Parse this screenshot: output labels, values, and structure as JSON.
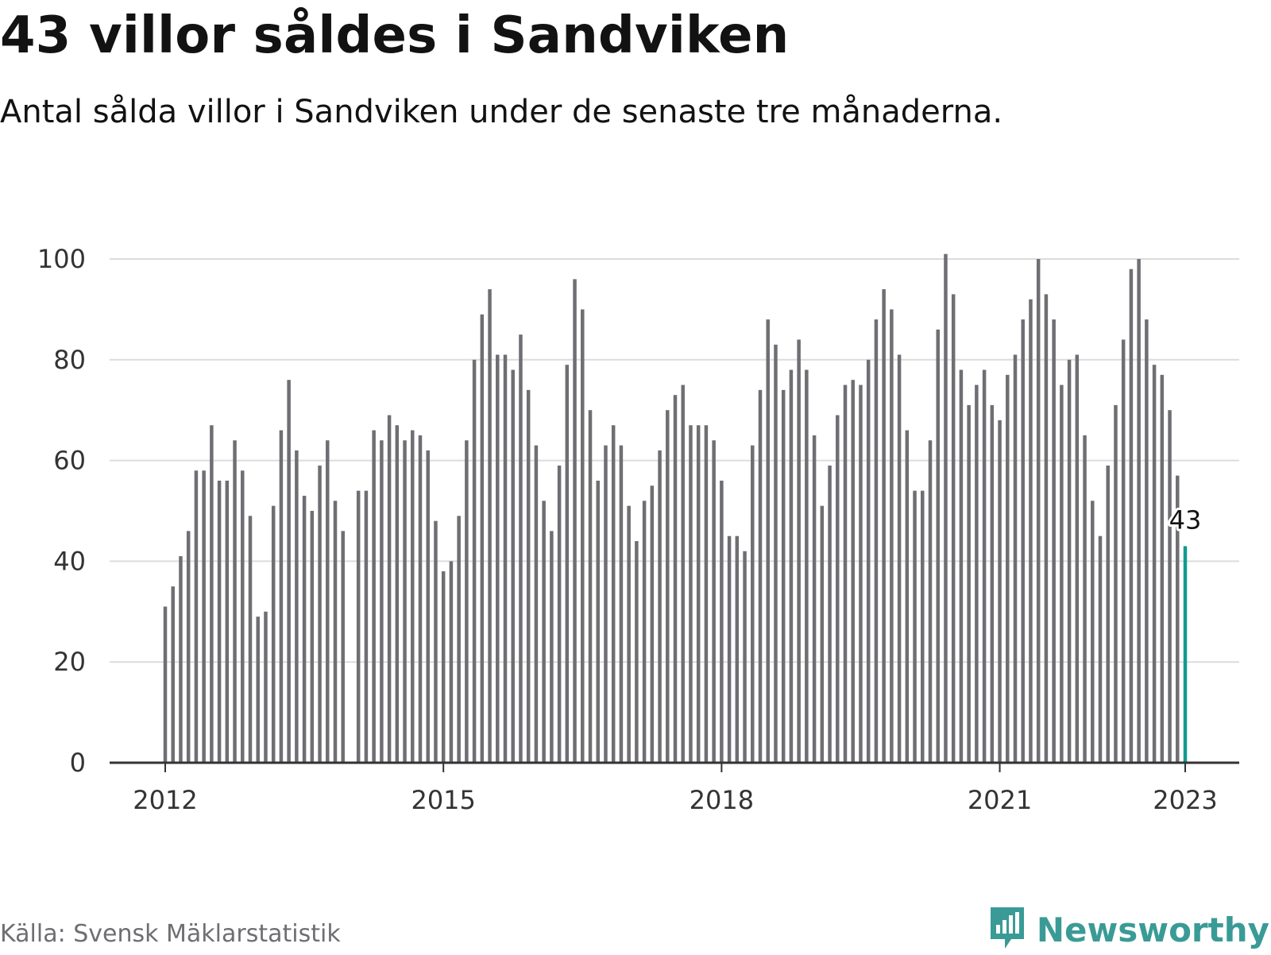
{
  "title": "43 villor såldes i Sandviken",
  "subtitle": "Antal sålda villor i Sandviken under de senaste tre månaderna.",
  "source": "Källa: Svensk Mäklarstatistik",
  "brand": {
    "name": "Newsworthy",
    "icon": "newsworthy-logo-icon",
    "color": "#3a9b96"
  },
  "colors": {
    "bar": "#6e6e73",
    "highlight": "#0f9b8e",
    "grid": "#dcdcdc",
    "axis": "#333333"
  },
  "chart_data": {
    "type": "bar",
    "x_axis": {
      "type": "date",
      "start": "2012-01",
      "end": "2023-01",
      "ticks": [
        "2012",
        "2015",
        "2018",
        "2021",
        "2023"
      ]
    },
    "y_axis": {
      "ticks": [
        0,
        20,
        40,
        60,
        80,
        100
      ],
      "ylim": [
        0,
        100
      ]
    },
    "grid": true,
    "highlight": {
      "x": "2023-01",
      "label": "43"
    },
    "x": [
      "2012-01",
      "2012-02",
      "2012-03",
      "2012-04",
      "2012-05",
      "2012-06",
      "2012-07",
      "2012-08",
      "2012-09",
      "2012-10",
      "2012-11",
      "2012-12",
      "2013-01",
      "2013-02",
      "2013-03",
      "2013-04",
      "2013-05",
      "2013-06",
      "2013-07",
      "2013-08",
      "2013-09",
      "2013-10",
      "2013-11",
      "2013-12",
      "2014-01",
      "2014-02",
      "2014-03",
      "2014-04",
      "2014-05",
      "2014-06",
      "2014-07",
      "2014-08",
      "2014-09",
      "2014-10",
      "2014-11",
      "2014-12",
      "2015-01",
      "2015-02",
      "2015-03",
      "2015-04",
      "2015-05",
      "2015-06",
      "2015-07",
      "2015-08",
      "2015-09",
      "2015-10",
      "2015-11",
      "2015-12",
      "2016-01",
      "2016-02",
      "2016-03",
      "2016-04",
      "2016-05",
      "2016-06",
      "2016-07",
      "2016-08",
      "2016-09",
      "2016-10",
      "2016-11",
      "2016-12",
      "2017-01",
      "2017-02",
      "2017-03",
      "2017-04",
      "2017-05",
      "2017-06",
      "2017-07",
      "2017-08",
      "2017-09",
      "2017-10",
      "2017-11",
      "2017-12",
      "2018-01",
      "2018-02",
      "2018-03",
      "2018-04",
      "2018-05",
      "2018-06",
      "2018-07",
      "2018-08",
      "2018-09",
      "2018-10",
      "2018-11",
      "2018-12",
      "2019-01",
      "2019-02",
      "2019-03",
      "2019-04",
      "2019-05",
      "2019-06",
      "2019-07",
      "2019-08",
      "2019-09",
      "2019-10",
      "2019-11",
      "2019-12",
      "2020-01",
      "2020-02",
      "2020-03",
      "2020-04",
      "2020-05",
      "2020-06",
      "2020-07",
      "2020-08",
      "2020-09",
      "2020-10",
      "2020-11",
      "2020-12",
      "2021-01",
      "2021-02",
      "2021-03",
      "2021-04",
      "2021-05",
      "2021-06",
      "2021-07",
      "2021-08",
      "2021-09",
      "2021-10",
      "2021-11",
      "2021-12",
      "2022-01",
      "2022-02",
      "2022-03",
      "2022-04",
      "2022-05",
      "2022-06",
      "2022-07",
      "2022-08",
      "2022-09",
      "2022-10",
      "2022-11",
      "2022-12",
      "2023-01"
    ],
    "values": [
      31,
      35,
      41,
      46,
      58,
      58,
      67,
      56,
      56,
      64,
      58,
      49,
      29,
      30,
      51,
      66,
      76,
      62,
      53,
      50,
      59,
      64,
      52,
      46,
      null,
      54,
      54,
      66,
      64,
      69,
      67,
      64,
      66,
      65,
      62,
      48,
      38,
      40,
      49,
      64,
      80,
      89,
      94,
      81,
      81,
      78,
      85,
      74,
      63,
      52,
      46,
      59,
      79,
      96,
      90,
      70,
      56,
      63,
      67,
      63,
      51,
      44,
      52,
      55,
      62,
      70,
      73,
      75,
      67,
      67,
      67,
      64,
      56,
      45,
      45,
      42,
      63,
      74,
      88,
      83,
      74,
      78,
      84,
      78,
      65,
      51,
      59,
      69,
      75,
      76,
      75,
      80,
      88,
      94,
      90,
      81,
      66,
      54,
      54,
      64,
      86,
      101,
      93,
      78,
      71,
      75,
      78,
      71,
      68,
      77,
      81,
      88,
      92,
      100,
      93,
      88,
      75,
      80,
      81,
      65,
      52,
      45,
      59,
      71,
      84,
      98,
      100,
      88,
      79,
      77,
      70,
      57,
      43
    ]
  }
}
